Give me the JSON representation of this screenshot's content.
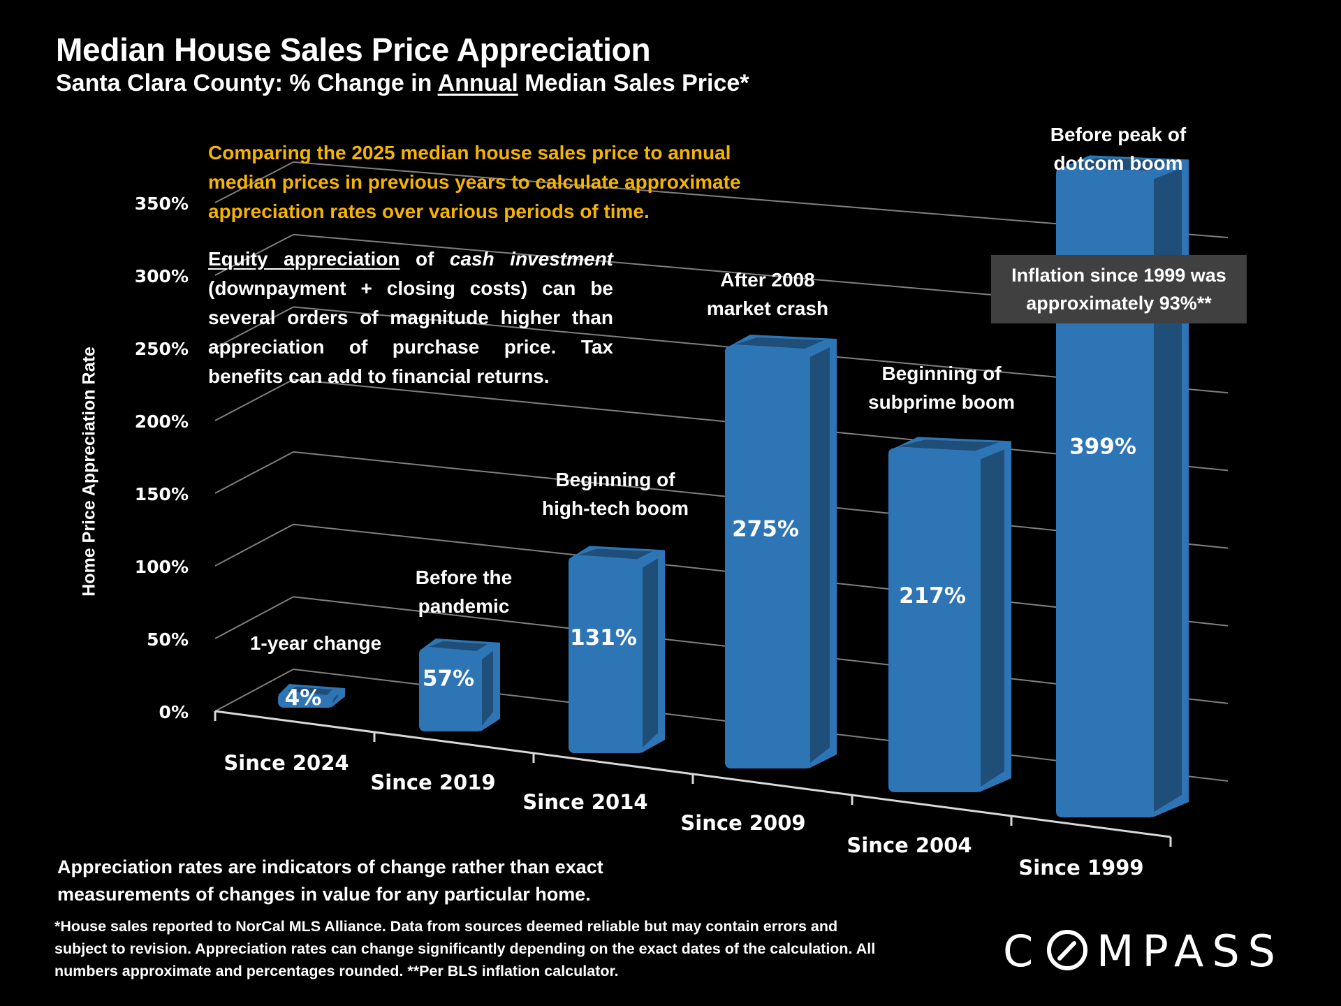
{
  "header": {
    "title": "Median House Sales Price Appreciation",
    "subtitle_pre": "Santa Clara County: % Change in ",
    "subtitle_underlined": "Annual",
    "subtitle_post": " Median Sales Price*"
  },
  "intro_text": "Comparing the 2025 median house sales price to annual median prices in previous years to calculate approximate appreciation rates over various periods of time.",
  "equity_text": {
    "underlined": "Equity appreciation",
    "part1": " of ",
    "italic": "cash investment",
    "part2": " (downpayment + closing costs) can be several orders of magnitude higher than appreciation of purchase price. Tax benefits can add to financial returns."
  },
  "inflation_box": {
    "line1": "Inflation since 1999 was",
    "line2": "approximately 93%**"
  },
  "note": "Appreciation rates are indicators of change rather than exact measurements of changes in value for any particular home.",
  "footnote": "*House sales reported to NorCal MLS Alliance. Data from sources deemed reliable but may contain errors and subject to revision. Appreciation rates can change significantly depending on the exact dates of the calculation. All numbers  approximate and percentages rounded. **Per BLS inflation calculator.",
  "logo": {
    "text": "COMPASS",
    "icon": "compass-o-slash-icon"
  },
  "colors": {
    "bar": "#2e75b6",
    "bar_dark": "#1f4e79",
    "accent_text": "#f5b400",
    "grid": "#7f7f7f",
    "box": "#404040"
  },
  "chart_data": {
    "type": "bar",
    "style": "3d-perspective",
    "title": "Median House Sales Price Appreciation",
    "subtitle": "Santa Clara County: % Change in Annual Median Sales Price*",
    "xlabel": "",
    "ylabel": "Home Price Appreciation Rate",
    "ylim": [
      0,
      350
    ],
    "yticks": [
      0,
      50,
      100,
      150,
      200,
      250,
      300,
      350
    ],
    "ytick_labels": [
      "0%",
      "50%",
      "100%",
      "150%",
      "200%",
      "250%",
      "300%",
      "350%"
    ],
    "grid": true,
    "categories": [
      "Since 2024",
      "Since 2019",
      "Since 2014",
      "Since 2009",
      "Since 2004",
      "Since 1999"
    ],
    "values": [
      4,
      57,
      131,
      275,
      217,
      399
    ],
    "data_labels": [
      "4%",
      "57%",
      "131%",
      "275%",
      "217%",
      "399%"
    ],
    "annotations": [
      [
        "1-year change"
      ],
      [
        "Before the",
        "pandemic"
      ],
      [
        "Beginning of",
        "high-tech boom"
      ],
      [
        "After 2008",
        "market crash"
      ],
      [
        "Beginning of",
        "subprime boom"
      ],
      [
        "Before peak of",
        "dotcom boom"
      ]
    ]
  }
}
